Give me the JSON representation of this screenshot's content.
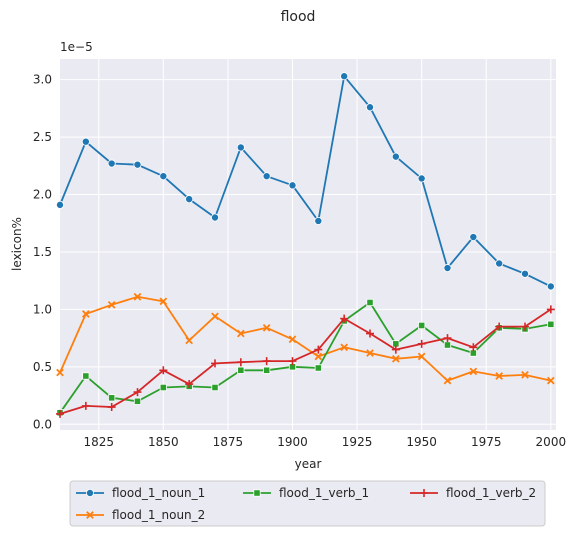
{
  "chart_data": {
    "type": "line",
    "title": "flood",
    "xlabel": "year",
    "ylabel": "lexicon%",
    "y_offset_label": "1e−5",
    "xlim": [
      1810,
      2002
    ],
    "ylim": [
      -0.05,
      3.18
    ],
    "x_ticks": [
      1825,
      1850,
      1875,
      1900,
      1925,
      1950,
      1975,
      2000
    ],
    "y_ticks": [
      0.0,
      0.5,
      1.0,
      1.5,
      2.0,
      2.5,
      3.0
    ],
    "y_tick_labels": [
      "0.0",
      "0.5",
      "1.0",
      "1.5",
      "2.0",
      "2.5",
      "3.0"
    ],
    "grid": true,
    "legend_position": "bottom-center",
    "x": [
      1810,
      1820,
      1830,
      1840,
      1850,
      1860,
      1870,
      1880,
      1890,
      1900,
      1910,
      1920,
      1930,
      1940,
      1950,
      1960,
      1970,
      1980,
      1990,
      2000
    ],
    "series": [
      {
        "name": "flood_1_noun_1",
        "color": "#1f77b4",
        "marker": "circle",
        "values": [
          1.91,
          2.46,
          2.27,
          2.26,
          2.16,
          1.96,
          1.8,
          2.41,
          2.16,
          2.08,
          1.77,
          3.03,
          2.76,
          2.33,
          2.14,
          1.36,
          1.63,
          1.4,
          1.31,
          1.2
        ]
      },
      {
        "name": "flood_1_noun_2",
        "color": "#ff7f0e",
        "marker": "x",
        "values": [
          0.45,
          0.96,
          1.04,
          1.11,
          1.07,
          0.73,
          0.94,
          0.79,
          0.84,
          0.74,
          0.59,
          0.67,
          0.62,
          0.57,
          0.59,
          0.38,
          0.46,
          0.42,
          0.43,
          0.38
        ]
      },
      {
        "name": "flood_1_verb_1",
        "color": "#2ca02c",
        "marker": "square",
        "values": [
          0.1,
          0.42,
          0.23,
          0.2,
          0.32,
          0.33,
          0.32,
          0.47,
          0.47,
          0.5,
          0.49,
          0.9,
          1.06,
          0.7,
          0.86,
          0.69,
          0.62,
          0.84,
          0.83,
          0.87
        ]
      },
      {
        "name": "flood_1_verb_2",
        "color": "#d62728",
        "marker": "plus",
        "values": [
          0.09,
          0.16,
          0.15,
          0.28,
          0.47,
          0.35,
          0.53,
          0.54,
          0.55,
          0.55,
          0.65,
          0.92,
          0.79,
          0.65,
          0.7,
          0.75,
          0.67,
          0.85,
          0.85,
          1.0
        ]
      }
    ]
  }
}
